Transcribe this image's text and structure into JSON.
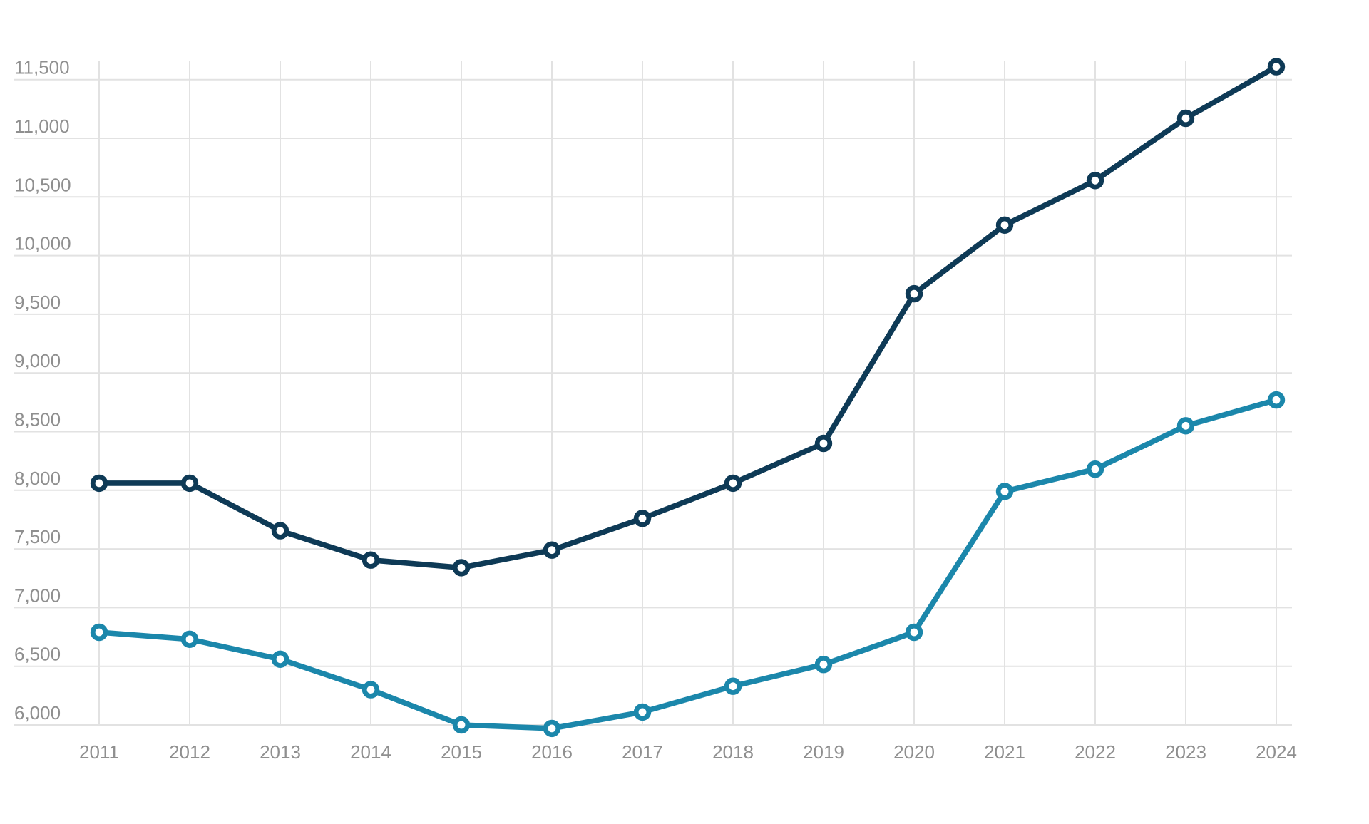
{
  "chart_data": {
    "type": "line",
    "categories": [
      "2011",
      "2012",
      "2013",
      "2014",
      "2015",
      "2016",
      "2017",
      "2018",
      "2019",
      "2020",
      "2021",
      "2022",
      "2023",
      "2024"
    ],
    "series": [
      {
        "id": "dark-navy-series",
        "color": "#0e3a56",
        "values": [
          8060,
          8060,
          7655,
          7405,
          7340,
          7490,
          7760,
          8060,
          8400,
          9675,
          10260,
          10640,
          11170,
          11610
        ]
      },
      {
        "id": "teal-series",
        "color": "#1b87ab",
        "values": [
          6790,
          6730,
          6560,
          6300,
          6000,
          5970,
          6110,
          6330,
          6515,
          6790,
          7990,
          8180,
          8550,
          8770
        ]
      }
    ],
    "y_ticks": [
      {
        "value": 6000,
        "label": "6,000"
      },
      {
        "value": 6500,
        "label": "6,500"
      },
      {
        "value": 7000,
        "label": "7,000"
      },
      {
        "value": 7500,
        "label": "7,500"
      },
      {
        "value": 8000,
        "label": "8,000"
      },
      {
        "value": 8500,
        "label": "8,500"
      },
      {
        "value": 9000,
        "label": "9,000"
      },
      {
        "value": 9500,
        "label": "9,500"
      },
      {
        "value": 10000,
        "label": "10,000"
      },
      {
        "value": 10500,
        "label": "10,500"
      },
      {
        "value": 11000,
        "label": "11,000"
      },
      {
        "value": 11500,
        "label": "11,500"
      }
    ],
    "ylim": [
      5800,
      11750
    ],
    "grid": true,
    "legend_position": "none",
    "marker_fill": "#ffffff",
    "gridline_color": "#e2e2e2",
    "axis_label_color": "#8f8f8f"
  }
}
